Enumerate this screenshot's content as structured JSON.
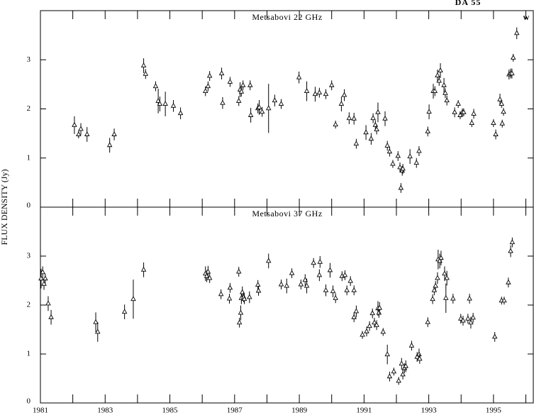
{
  "y_label": "FLUX DENSITY (Jy)",
  "chart_data": [
    {
      "type": "scatter",
      "title": "Metsabovi 22 GHz",
      "annotations": [
        "DA 55",
        "w"
      ],
      "x": [
        1982.05,
        1982.18,
        1982.25,
        1982.44,
        1983.14,
        1983.28,
        1984.19,
        1984.25,
        1984.56,
        1984.64,
        1984.69,
        1984.86,
        1985.11,
        1985.33,
        1986.1,
        1986.18,
        1986.23,
        1986.6,
        1986.63,
        1986.86,
        1987.13,
        1987.17,
        1987.21,
        1987.26,
        1987.48,
        1987.5,
        1987.72,
        1987.76,
        1987.85,
        1988.05,
        1988.24,
        1988.44,
        1988.99,
        1989.23,
        1989.49,
        1989.62,
        1989.82,
        1990.0,
        1990.12,
        1990.3,
        1990.39,
        1990.54,
        1990.69,
        1990.76,
        1991.06,
        1991.22,
        1991.28,
        1991.35,
        1991.39,
        1991.43,
        1991.65,
        1991.72,
        1991.79,
        1991.89,
        1992.05,
        1992.11,
        1992.14,
        1992.18,
        1992.2,
        1992.42,
        1992.62,
        1992.7,
        1992.97,
        1993.01,
        1993.14,
        1993.19,
        1993.27,
        1993.32,
        1993.36,
        1993.47,
        1993.51,
        1993.56,
        1993.8,
        1993.91,
        1993.97,
        1994.04,
        1994.08,
        1994.33,
        1994.39,
        1995.0,
        1995.07,
        1995.2,
        1995.25,
        1995.27,
        1995.31,
        1995.48,
        1995.53,
        1995.57,
        1995.61,
        1995.72
      ],
      "values": [
        1.67,
        1.48,
        1.59,
        1.48,
        1.26,
        1.48,
        2.88,
        2.71,
        2.46,
        2.16,
        2.1,
        2.1,
        2.06,
        1.91,
        2.36,
        2.46,
        2.67,
        2.72,
        2.12,
        2.55,
        2.16,
        2.39,
        2.35,
        2.48,
        2.48,
        1.87,
        2.01,
        2.03,
        1.94,
        2.01,
        2.17,
        2.1,
        2.64,
        2.36,
        2.3,
        2.33,
        2.3,
        2.48,
        1.68,
        2.1,
        2.28,
        1.81,
        1.8,
        1.29,
        1.52,
        1.39,
        1.81,
        1.67,
        1.58,
        1.93,
        1.8,
        1.25,
        1.13,
        0.88,
        1.04,
        0.81,
        0.39,
        0.74,
        0.78,
        1.03,
        0.9,
        1.14,
        1.54,
        1.94,
        2.36,
        2.36,
        2.68,
        2.57,
        2.78,
        2.48,
        2.32,
        2.17,
        1.93,
        2.1,
        1.87,
        1.93,
        1.93,
        1.71,
        1.9,
        1.71,
        1.48,
        2.19,
        2.1,
        1.7,
        1.94,
        2.7,
        2.72,
        2.72,
        3.04,
        3.54
      ],
      "errors": [
        0.18,
        0.08,
        0.12,
        0.15,
        0.15,
        0.12,
        0.15,
        0.1,
        0.1,
        0.25,
        0.15,
        0.25,
        0.12,
        0.12,
        0.1,
        0.1,
        0.1,
        0.12,
        0.12,
        0.1,
        0.1,
        0.15,
        0.1,
        0.1,
        0.1,
        0.15,
        0.1,
        0.15,
        0.1,
        0.5,
        0.12,
        0.1,
        0.12,
        0.2,
        0.15,
        0.1,
        0.1,
        0.1,
        0.08,
        0.15,
        0.12,
        0.12,
        0.12,
        0.1,
        0.15,
        0.12,
        0.1,
        0.1,
        0.1,
        0.2,
        0.15,
        0.1,
        0.1,
        0.08,
        0.1,
        0.1,
        0.1,
        0.1,
        0.1,
        0.15,
        0.1,
        0.1,
        0.1,
        0.15,
        0.15,
        0.1,
        0.12,
        0.1,
        0.15,
        0.15,
        0.1,
        0.1,
        0.1,
        0.08,
        0.08,
        0.08,
        0.08,
        0.08,
        0.1,
        0.08,
        0.1,
        0.12,
        0.08,
        0.08,
        0.08,
        0.1,
        0.1,
        0.1,
        0.08,
        0.12
      ],
      "xlim": [
        1981,
        1996.23
      ],
      "ylim": [
        0,
        4.0
      ],
      "xticks": [
        1981,
        1983,
        1985,
        1987,
        1989,
        1991,
        1993,
        1995
      ],
      "xminorticks": [
        1982,
        1984,
        1986,
        1988,
        1990,
        1992,
        1994,
        1996
      ],
      "yticks": [
        0,
        1,
        2,
        3
      ]
    },
    {
      "type": "scatter",
      "title": "Metsabovi 37 GHz",
      "x": [
        1981.02,
        1981.07,
        1981.11,
        1981.15,
        1981.24,
        1981.33,
        1982.71,
        1982.77,
        1983.6,
        1983.87,
        1984.19,
        1986.1,
        1986.14,
        1986.18,
        1986.23,
        1986.58,
        1986.84,
        1986.86,
        1987.13,
        1987.15,
        1987.19,
        1987.21,
        1987.24,
        1987.28,
        1987.3,
        1987.46,
        1987.72,
        1987.74,
        1988.05,
        1988.44,
        1988.61,
        1988.77,
        1989.05,
        1989.18,
        1989.23,
        1989.44,
        1989.62,
        1989.64,
        1989.82,
        1989.95,
        1990.04,
        1990.12,
        1990.32,
        1990.41,
        1990.47,
        1990.58,
        1990.69,
        1990.69,
        1990.76,
        1990.95,
        1991.08,
        1991.17,
        1991.26,
        1991.32,
        1991.39,
        1991.43,
        1991.46,
        1991.48,
        1991.59,
        1991.72,
        1991.79,
        1991.92,
        1992.07,
        1992.16,
        1992.2,
        1992.25,
        1992.29,
        1992.47,
        1992.64,
        1992.7,
        1992.72,
        1992.97,
        1993.12,
        1993.17,
        1993.21,
        1993.27,
        1993.29,
        1993.34,
        1993.38,
        1993.49,
        1993.53,
        1993.56,
        1993.75,
        1993.99,
        1994.06,
        1994.21,
        1994.26,
        1994.3,
        1994.37,
        1995.04,
        1995.25,
        1995.33,
        1995.46,
        1995.53,
        1995.58
      ],
      "values": [
        2.54,
        2.67,
        2.43,
        2.54,
        2.03,
        1.75,
        1.65,
        1.45,
        1.86,
        2.12,
        2.72,
        2.64,
        2.59,
        2.68,
        2.55,
        2.22,
        2.13,
        2.35,
        2.68,
        1.64,
        1.84,
        2.14,
        2.26,
        2.16,
        2.12,
        2.16,
        2.41,
        2.29,
        2.9,
        2.42,
        2.39,
        2.65,
        2.42,
        2.51,
        2.39,
        2.86,
        2.61,
        2.88,
        2.3,
        2.71,
        2.28,
        2.14,
        2.59,
        2.61,
        2.3,
        2.49,
        2.3,
        1.75,
        1.87,
        1.39,
        1.46,
        1.57,
        1.83,
        1.64,
        1.59,
        1.93,
        1.84,
        1.94,
        1.45,
        0.99,
        0.54,
        0.64,
        0.45,
        0.8,
        0.58,
        0.71,
        0.75,
        1.17,
        0.94,
        0.99,
        0.9,
        1.65,
        2.12,
        2.3,
        2.39,
        2.55,
        2.93,
        2.9,
        2.96,
        2.64,
        2.14,
        2.55,
        2.13,
        1.72,
        1.68,
        1.72,
        2.13,
        1.64,
        1.74,
        1.35,
        2.09,
        2.09,
        2.46,
        3.1,
        3.28
      ],
      "errors": [
        0.2,
        0.12,
        0.12,
        0.1,
        0.15,
        0.15,
        0.2,
        0.2,
        0.15,
        0.4,
        0.15,
        0.15,
        0.12,
        0.12,
        0.1,
        0.1,
        0.1,
        0.1,
        0.1,
        0.1,
        0.15,
        0.12,
        0.12,
        0.1,
        0.1,
        0.12,
        0.1,
        0.1,
        0.15,
        0.1,
        0.15,
        0.1,
        0.1,
        0.12,
        0.15,
        0.1,
        0.12,
        0.12,
        0.12,
        0.15,
        0.12,
        0.1,
        0.1,
        0.1,
        0.1,
        0.1,
        0.1,
        0.1,
        0.12,
        0.08,
        0.1,
        0.1,
        0.1,
        0.1,
        0.1,
        0.15,
        0.1,
        0.12,
        0.08,
        0.2,
        0.1,
        0.08,
        0.08,
        0.12,
        0.1,
        0.1,
        0.12,
        0.1,
        0.1,
        0.12,
        0.1,
        0.1,
        0.1,
        0.1,
        0.1,
        0.12,
        0.2,
        0.15,
        0.15,
        0.15,
        0.3,
        0.15,
        0.1,
        0.1,
        0.1,
        0.1,
        0.1,
        0.12,
        0.1,
        0.1,
        0.08,
        0.08,
        0.1,
        0.12,
        0.1
      ],
      "xlim": [
        1981,
        1996.23
      ],
      "ylim": [
        0,
        4.0
      ],
      "xticks": [
        1981,
        1983,
        1985,
        1987,
        1989,
        1991,
        1993,
        1995
      ],
      "xminorticks": [
        1982,
        1984,
        1986,
        1988,
        1990,
        1992,
        1994,
        1996
      ],
      "xticklabels": true,
      "yticks": [
        0,
        1,
        2,
        3
      ]
    }
  ]
}
